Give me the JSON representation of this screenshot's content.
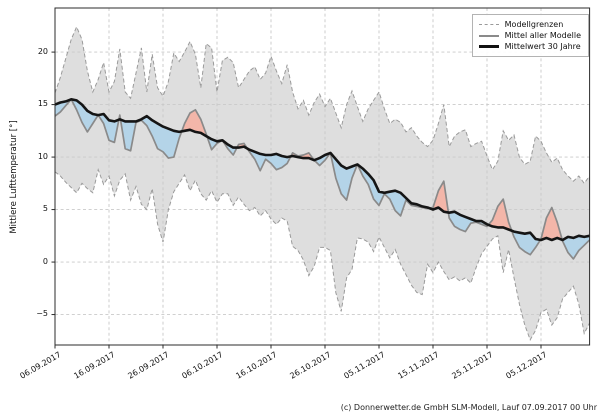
{
  "figure": {
    "footer": "(c) Donnerwetter.de GmbH SLM-Modell, Lauf 07.09.2017 00 Uhr"
  },
  "chart_data": {
    "type": "area",
    "title": "",
    "ylabel": "Mittlere Lufttemperatur [°]",
    "xlabel": "",
    "grid": true,
    "legend_position": "upper right",
    "ylim": [
      -7.9,
      24.2
    ],
    "y_ticks": [
      20,
      15,
      10,
      5,
      0,
      -5
    ],
    "y_tick_labels": [
      "20",
      "15",
      "10",
      "5",
      "0",
      "−5"
    ],
    "x_unit": "days since 06.09.2017",
    "start_date": "06.09.2017",
    "x_range_days": [
      0,
      99
    ],
    "x_tick_days": [
      0,
      10,
      20,
      30,
      40,
      50,
      60,
      70,
      80,
      90
    ],
    "x_tick_labels": [
      "06.09.2017",
      "16.09.2017",
      "26.09.2017",
      "06.10.2017",
      "16.10.2017",
      "26.10.2017",
      "05.11.2017",
      "15.11.2017",
      "25.11.2017",
      "05.12.2017"
    ],
    "legend": [
      {
        "label": "Modellgrenzen",
        "style": "dashed-gray"
      },
      {
        "label": "Mittel aller Modelle",
        "style": "solid-gray"
      },
      {
        "label": "Mittelwert 30 Jahre",
        "style": "solid-black-thick"
      }
    ],
    "colors": {
      "band_fill": "#dedede",
      "band_edge": "#9a9a9a",
      "model_mean_line": "#8a8a8a",
      "mean_30y_line": "#151515",
      "warmer_fill": "#f3b6a9",
      "cooler_fill": "#b4d4e8",
      "grid": "#c9c9c9",
      "axis": "#2b2b2b"
    },
    "series": [
      {
        "name": "Modellgrenze oben",
        "role": "upper_bound",
        "values": [
          16.1,
          17.6,
          19.4,
          21.2,
          22.4,
          21.2,
          18.2,
          16.2,
          17.4,
          19.0,
          16.2,
          17.2,
          20.3,
          16.2,
          15.6,
          18.0,
          20.4,
          16.2,
          19.8,
          16.6,
          15.8,
          17.2,
          19.9,
          19.1,
          20.0,
          21.0,
          19.8,
          16.6,
          20.8,
          20.4,
          16.2,
          19.2,
          19.5,
          19.0,
          16.6,
          17.4,
          18.2,
          18.6,
          17.4,
          18.0,
          19.6,
          18.2,
          17.0,
          18.8,
          16.2,
          14.6,
          15.4,
          14.0,
          15.2,
          16.0,
          14.8,
          15.6,
          14.2,
          12.8,
          15.0,
          16.3,
          14.8,
          13.4,
          14.6,
          15.4,
          16.2,
          14.6,
          13.2,
          13.6,
          13.3,
          12.4,
          12.8,
          12.0,
          11.4,
          11.0,
          11.6,
          13.2,
          15.0,
          11.0,
          12.0,
          12.4,
          12.6,
          11.0,
          11.3,
          11.5,
          10.1,
          8.8,
          9.6,
          12.5,
          11.6,
          12.1,
          10.0,
          9.3,
          9.6,
          12.0,
          11.5,
          10.4,
          9.5,
          9.9,
          8.8,
          8.2,
          7.7,
          8.2,
          7.5,
          8.2
        ]
      },
      {
        "name": "Modellgrenze unten",
        "role": "lower_bound",
        "values": [
          8.6,
          8.2,
          7.6,
          7.1,
          6.6,
          7.5,
          7.0,
          6.6,
          8.8,
          7.4,
          8.2,
          6.3,
          7.8,
          8.4,
          5.9,
          7.2,
          5.5,
          5.0,
          7.0,
          3.6,
          1.9,
          5.0,
          6.7,
          7.5,
          8.3,
          6.8,
          7.8,
          6.5,
          5.9,
          6.8,
          5.7,
          6.5,
          6.5,
          5.4,
          6.2,
          5.5,
          4.9,
          5.2,
          4.4,
          4.9,
          4.1,
          3.6,
          4.2,
          3.9,
          1.5,
          1.1,
          0.2,
          -1.3,
          -0.4,
          1.4,
          1.4,
          1.1,
          -2.9,
          -4.7,
          -1.5,
          -0.7,
          2.3,
          2.2,
          1.9,
          1.0,
          2.4,
          1.4,
          0.4,
          1.2,
          -0.2,
          -1.2,
          -2.2,
          -2.9,
          -3.1,
          -0.2,
          -1.0,
          0.0,
          -0.9,
          -1.7,
          -1.4,
          -1.8,
          -1.5,
          -2.0,
          -0.5,
          0.8,
          1.5,
          2.2,
          2.5,
          -1.0,
          1.2,
          -1.5,
          -4.0,
          -6.0,
          -7.4,
          -6.5,
          -4.8,
          -4.5,
          -6.0,
          -5.3,
          -3.5,
          -2.9,
          -2.3,
          -4.0,
          -6.8,
          -5.8
        ]
      },
      {
        "name": "Mittel aller Modelle",
        "role": "model_mean",
        "values": [
          13.9,
          14.3,
          14.9,
          15.5,
          14.5,
          13.3,
          12.4,
          13.2,
          14.0,
          13.2,
          11.6,
          11.4,
          14.0,
          10.8,
          10.6,
          13.3,
          13.5,
          13.0,
          12.0,
          10.8,
          10.5,
          9.9,
          10.0,
          11.8,
          13.2,
          14.2,
          14.5,
          13.6,
          12.2,
          10.7,
          11.3,
          11.6,
          10.8,
          10.2,
          11.2,
          11.3,
          10.5,
          9.8,
          8.7,
          9.8,
          9.4,
          8.8,
          9.0,
          9.4,
          10.4,
          10.1,
          10.2,
          10.4,
          9.7,
          9.2,
          9.7,
          10.4,
          8.0,
          6.5,
          5.9,
          8.0,
          9.3,
          8.2,
          7.4,
          6.0,
          5.4,
          6.5,
          6.0,
          4.9,
          4.4,
          5.9,
          5.4,
          5.3,
          5.2,
          5.1,
          5.2,
          6.8,
          7.7,
          4.2,
          3.4,
          3.1,
          2.9,
          3.7,
          3.8,
          3.6,
          3.4,
          4.0,
          5.3,
          6.0,
          3.8,
          2.4,
          1.4,
          1.0,
          0.7,
          1.4,
          2.2,
          4.2,
          5.2,
          3.8,
          2.0,
          0.9,
          0.3,
          1.1,
          1.6,
          2.1
        ]
      },
      {
        "name": "Mittelwert 30 Jahre",
        "role": "mean_30y",
        "values": [
          15.0,
          15.2,
          15.3,
          15.5,
          15.4,
          15.0,
          14.4,
          14.1,
          14.0,
          14.1,
          13.5,
          13.4,
          13.6,
          13.4,
          13.4,
          13.4,
          13.6,
          13.9,
          13.5,
          13.2,
          12.9,
          12.7,
          12.5,
          12.4,
          12.5,
          12.6,
          12.4,
          12.3,
          12.0,
          11.7,
          11.5,
          11.6,
          11.2,
          10.9,
          10.9,
          11.0,
          10.7,
          10.5,
          10.3,
          10.2,
          10.2,
          10.3,
          10.1,
          10.0,
          10.1,
          10.0,
          9.9,
          9.9,
          9.7,
          9.9,
          10.2,
          10.4,
          9.8,
          9.2,
          8.9,
          9.1,
          9.3,
          8.9,
          8.4,
          7.8,
          6.7,
          6.6,
          6.7,
          6.8,
          6.6,
          6.1,
          5.6,
          5.5,
          5.3,
          5.2,
          5.0,
          5.2,
          4.8,
          4.7,
          4.8,
          4.5,
          4.3,
          4.1,
          3.9,
          3.9,
          3.6,
          3.4,
          3.3,
          3.3,
          3.1,
          2.9,
          2.8,
          2.7,
          2.8,
          2.2,
          2.1,
          2.3,
          2.1,
          2.3,
          2.1,
          2.4,
          2.3,
          2.5,
          2.4,
          2.5
        ]
      }
    ],
    "footer": "(c) Donnerwetter.de GmbH SLM-Modell, Lauf 07.09.2017 00 Uhr"
  }
}
